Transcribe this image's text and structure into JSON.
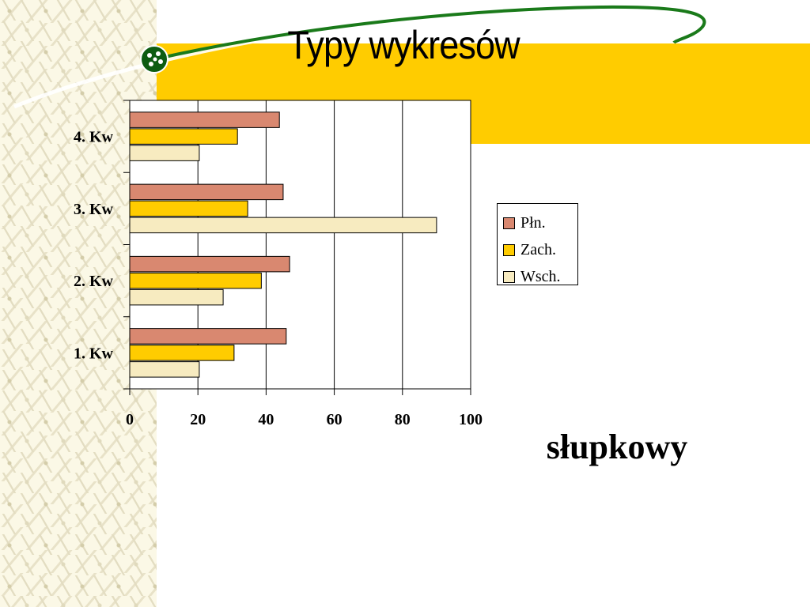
{
  "slide": {
    "title": "Typy wykresów",
    "chart_type_label": "słupkowy"
  },
  "colors": {
    "band": "#ffcc00",
    "swoosh": "#1a7a1a",
    "series": [
      "#d98870",
      "#ffcc00",
      "#f7ebc0"
    ]
  },
  "icons": [
    "green-bead-icon"
  ],
  "chart_data": {
    "type": "bar",
    "orientation": "horizontal",
    "categories": [
      "1. Kw",
      "2. Kw",
      "3. Kw",
      "4. Kw"
    ],
    "series": [
      {
        "name": "Płn.",
        "values": [
          45.9,
          46.9,
          45,
          43.9
        ]
      },
      {
        "name": "Zach.",
        "values": [
          30.6,
          38.6,
          34.6,
          31.6
        ]
      },
      {
        "name": "Wsch.",
        "values": [
          20.4,
          27.4,
          90,
          20.4
        ]
      }
    ],
    "xlim": [
      0,
      100
    ],
    "xticks": [
      0,
      20,
      40,
      60,
      80,
      100
    ],
    "xgrid": true,
    "legend": "right"
  }
}
